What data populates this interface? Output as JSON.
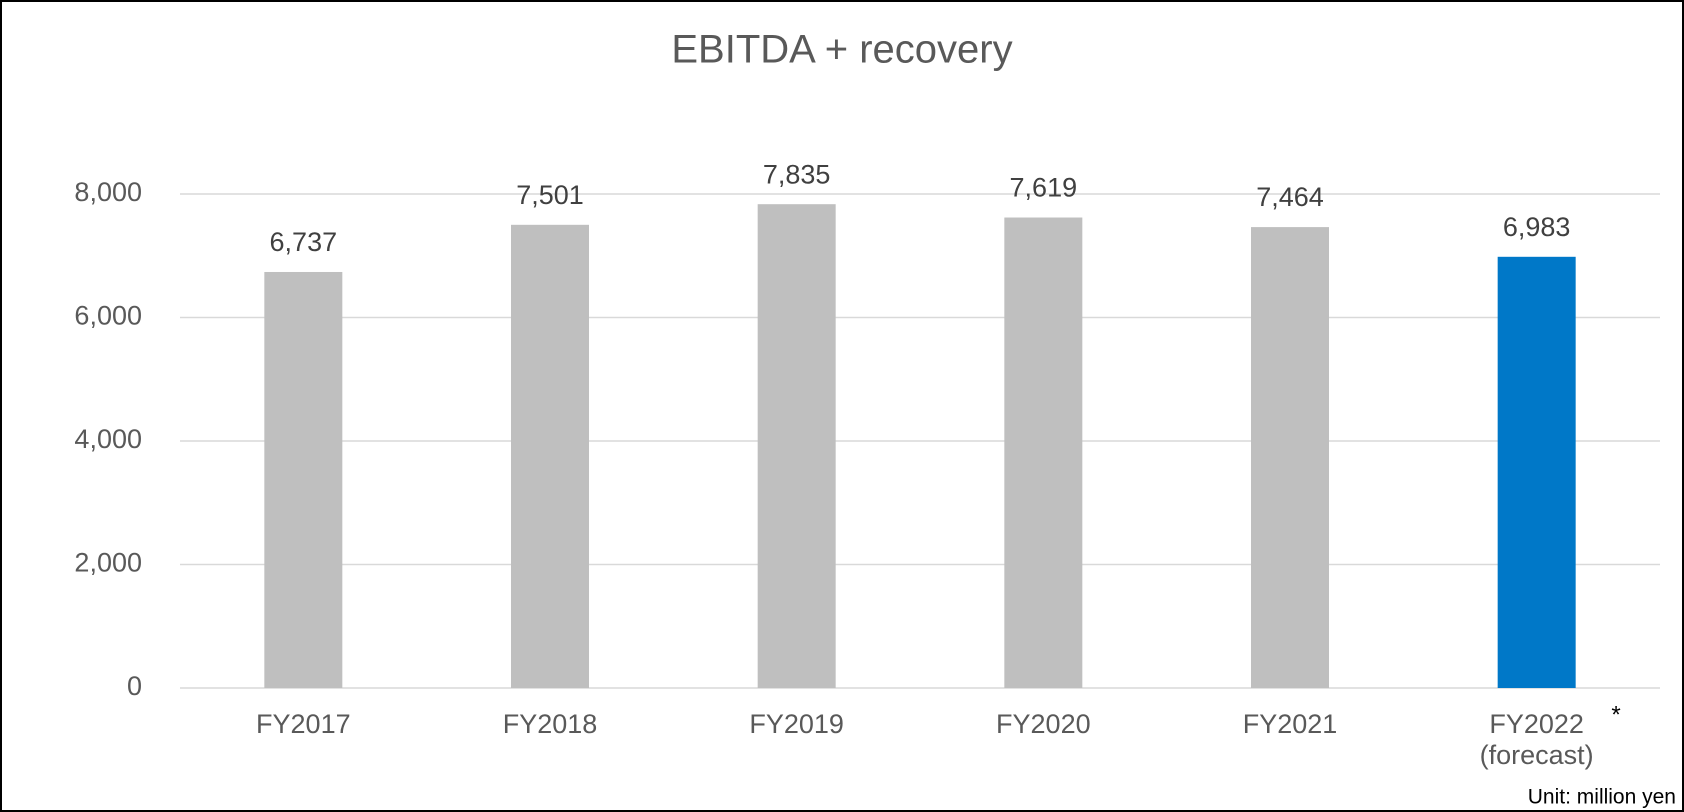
{
  "chart_data": {
    "type": "bar",
    "title": "EBITDA + recovery",
    "categories": [
      "FY2017",
      "FY2018",
      "FY2019",
      "FY2020",
      "FY2021",
      "FY2022\n(forecast)"
    ],
    "values": [
      6737,
      7501,
      7835,
      7619,
      7464,
      6983
    ],
    "value_labels": [
      "6,737",
      "7,501",
      "7,835",
      "7,619",
      "7,464",
      "6,983"
    ],
    "colors": [
      "#bfbfbf",
      "#bfbfbf",
      "#bfbfbf",
      "#bfbfbf",
      "#bfbfbf",
      "#0078c8"
    ],
    "ylim": [
      0,
      8000
    ],
    "yticks": [
      0,
      {
        "value": 2000,
        "label": "2,000"
      },
      {
        "value": 4000,
        "label": "4,000"
      },
      {
        "value": 6000,
        "label": "6,000"
      },
      {
        "value": 8000,
        "label": "8,000"
      }
    ],
    "grid": true,
    "annotations": [
      "*",
      "Unit: million yen"
    ]
  }
}
